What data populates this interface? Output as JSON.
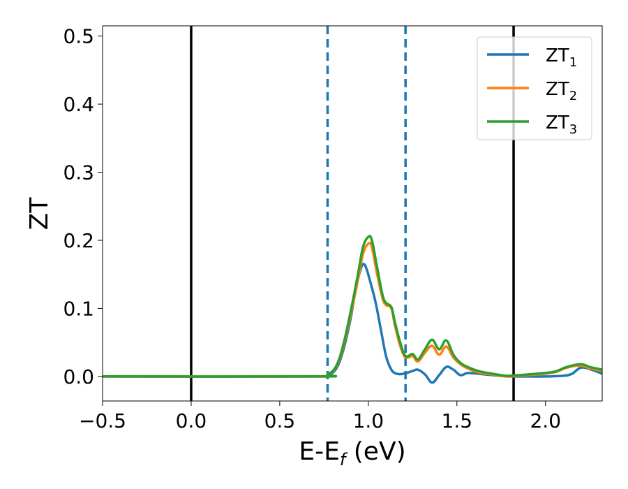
{
  "chart_data": {
    "type": "line",
    "xlabel_main": "E-E",
    "xlabel_sub": "f",
    "xlabel_unit": " (eV)",
    "ylabel": "ZT",
    "xlim": [
      -0.5,
      2.32
    ],
    "ylim": [
      -0.036,
      0.515
    ],
    "x_ticks": [
      -0.5,
      0.0,
      0.5,
      1.0,
      1.5,
      2.0
    ],
    "x_tick_labels": [
      "−0.5",
      "0.0",
      "0.5",
      "1.0",
      "1.5",
      "2.0"
    ],
    "y_ticks": [
      0.0,
      0.1,
      0.2,
      0.3,
      0.4,
      0.5
    ],
    "y_tick_labels": [
      "0.0",
      "0.1",
      "0.2",
      "0.3",
      "0.4",
      "0.5"
    ],
    "grid": false,
    "legend_position": "top-right",
    "vlines_solid": [
      0.0,
      1.82
    ],
    "vlines_dashed": [
      0.77,
      1.21
    ],
    "vline_solid_color": "#000000",
    "vline_dashed_color": "#1f77b4",
    "series": [
      {
        "name_main": "ZT",
        "name_sub": "1",
        "color": "#1f77b4",
        "x": [
          -0.5,
          0.7,
          0.77,
          0.82,
          0.86,
          0.9,
          0.93,
          0.96,
          0.975,
          0.99,
          1.01,
          1.04,
          1.07,
          1.1,
          1.13,
          1.16,
          1.2,
          1.25,
          1.28,
          1.32,
          1.36,
          1.4,
          1.44,
          1.48,
          1.52,
          1.56,
          1.62,
          1.7,
          1.8,
          1.9,
          2.0,
          2.1,
          2.15,
          2.2,
          2.26,
          2.32
        ],
        "y": [
          0.0,
          0.0,
          0.002,
          0.012,
          0.04,
          0.085,
          0.13,
          0.16,
          0.165,
          0.158,
          0.14,
          0.11,
          0.07,
          0.03,
          0.01,
          0.004,
          0.004,
          0.008,
          0.01,
          0.003,
          -0.009,
          0.002,
          0.014,
          0.01,
          0.002,
          0.005,
          0.004,
          0.002,
          0.0,
          0.0,
          0.0,
          0.001,
          0.004,
          0.013,
          0.01,
          0.004
        ]
      },
      {
        "name_main": "ZT",
        "name_sub": "2",
        "color": "#ff7f0e",
        "x": [
          -0.5,
          0.7,
          0.77,
          0.82,
          0.86,
          0.9,
          0.94,
          0.97,
          1.0,
          1.02,
          1.05,
          1.08,
          1.1,
          1.13,
          1.15,
          1.18,
          1.21,
          1.25,
          1.28,
          1.32,
          1.36,
          1.4,
          1.44,
          1.48,
          1.52,
          1.56,
          1.62,
          1.7,
          1.78,
          1.85,
          1.95,
          2.05,
          2.12,
          2.2,
          2.25,
          2.32
        ],
        "y": [
          0.0,
          0.0,
          0.003,
          0.015,
          0.045,
          0.09,
          0.14,
          0.18,
          0.195,
          0.19,
          0.15,
          0.115,
          0.105,
          0.1,
          0.075,
          0.045,
          0.028,
          0.03,
          0.022,
          0.035,
          0.045,
          0.032,
          0.044,
          0.028,
          0.018,
          0.012,
          0.006,
          0.003,
          0.0,
          0.001,
          0.003,
          0.006,
          0.013,
          0.016,
          0.012,
          0.008
        ]
      },
      {
        "name_main": "ZT",
        "name_sub": "3",
        "color": "#2ca02c",
        "x": [
          -0.5,
          0.7,
          0.77,
          0.82,
          0.86,
          0.9,
          0.94,
          0.97,
          1.0,
          1.02,
          1.05,
          1.08,
          1.1,
          1.13,
          1.15,
          1.18,
          1.21,
          1.25,
          1.28,
          1.32,
          1.36,
          1.4,
          1.44,
          1.48,
          1.52,
          1.56,
          1.62,
          1.7,
          1.78,
          1.85,
          1.95,
          2.05,
          2.12,
          2.2,
          2.25,
          2.32
        ],
        "y": [
          0.0,
          0.0,
          0.003,
          0.016,
          0.048,
          0.095,
          0.148,
          0.19,
          0.205,
          0.2,
          0.16,
          0.12,
          0.108,
          0.102,
          0.08,
          0.05,
          0.03,
          0.033,
          0.025,
          0.04,
          0.054,
          0.04,
          0.053,
          0.032,
          0.02,
          0.014,
          0.008,
          0.004,
          0.001,
          0.002,
          0.004,
          0.007,
          0.014,
          0.018,
          0.014,
          0.01
        ]
      }
    ]
  }
}
